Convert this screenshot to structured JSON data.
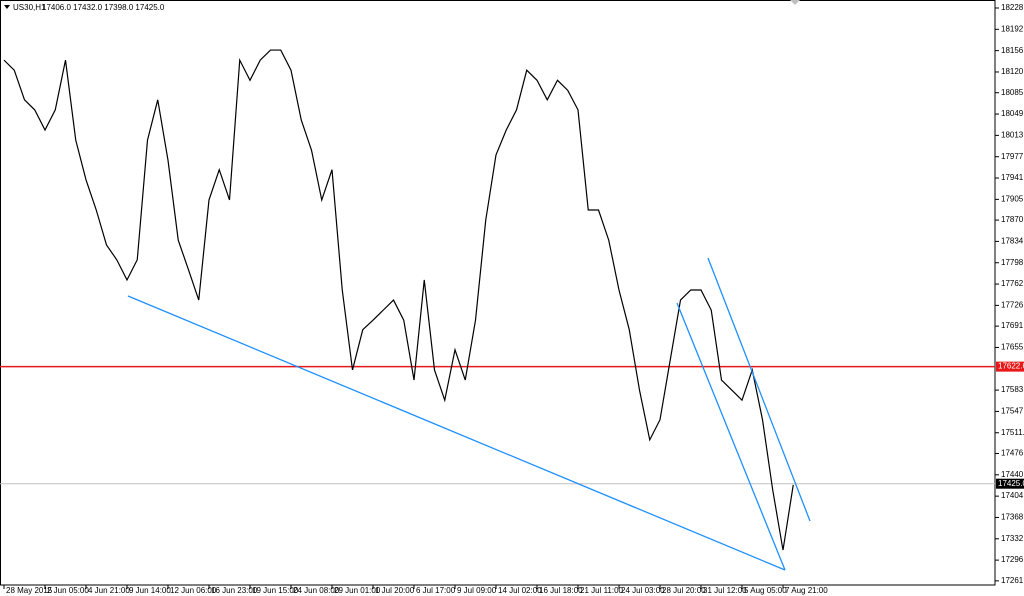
{
  "chart_data": {
    "type": "line",
    "title": "US30,H1",
    "subtitle": "17406.0 17432.0 17398.0 17425.0",
    "categories": [
      "28 May 2015",
      null,
      null,
      null,
      "2 Jun 05:00",
      null,
      null,
      null,
      "4 Jun 21:00",
      null,
      null,
      null,
      "9 Jun 14:00",
      null,
      null,
      null,
      "12 Jun 06:00",
      null,
      null,
      null,
      "16 Jun 23:00",
      null,
      null,
      null,
      "19 Jun 15:00",
      null,
      null,
      null,
      "24 Jun 08:00",
      null,
      null,
      null,
      "29 Jun 01:00",
      null,
      null,
      null,
      "1 Jul 20:00",
      null,
      null,
      null,
      "6 Jul 17:00",
      null,
      null,
      null,
      "9 Jul 09:00",
      null,
      null,
      null,
      "14 Jul 02:00",
      null,
      null,
      null,
      "16 Jul 18:00",
      null,
      null,
      null,
      "21 Jul 11:00",
      null,
      null,
      null,
      "24 Jul 03:00",
      null,
      null,
      null,
      "28 Jul 20:00",
      null,
      null,
      null,
      "31 Jul 12:00",
      null,
      null,
      null,
      "5 Aug 05:00",
      null,
      null,
      null,
      "7 Aug 21:00",
      null
    ],
    "values": [
      18140,
      18123,
      18073,
      18056,
      18022,
      18056,
      18140,
      18005,
      17938,
      17887,
      17828,
      17803,
      17769,
      17803,
      18005,
      18073,
      17971,
      17836,
      17786,
      17735,
      17904,
      17955,
      17904,
      18140,
      18106,
      18140,
      18157,
      18157,
      18123,
      18039,
      17988,
      17904,
      17955,
      17752,
      17617,
      17685,
      17701,
      17718,
      17735,
      17701,
      17600,
      17769,
      17617,
      17566,
      17651,
      17600,
      17701,
      17870,
      17980,
      18022,
      18056,
      18123,
      18106,
      18073,
      18106,
      18089,
      18056,
      17887,
      17887,
      17836,
      17752,
      17685,
      17583,
      17499,
      17533,
      17634,
      17735,
      17752,
      17752,
      17718,
      17600,
      17583,
      17566,
      17617,
      17533,
      17414,
      17313,
      17423
    ],
    "color": "#000000",
    "ylim": [
      17254,
      18241.5
    ],
    "yticks": [
      {
        "value": 18228,
        "label": "18228.0"
      },
      {
        "value": 18192,
        "label": "18192.0"
      },
      {
        "value": 18156,
        "label": "18156.0"
      },
      {
        "value": 18120,
        "label": "18120.0"
      },
      {
        "value": 18085,
        "label": "18085.0"
      },
      {
        "value": 18049,
        "label": "18049.0"
      },
      {
        "value": 18013,
        "label": "18013.0"
      },
      {
        "value": 17977,
        "label": "17977.0"
      },
      {
        "value": 17941,
        "label": "17941.0"
      },
      {
        "value": 17905,
        "label": "17905.0"
      },
      {
        "value": 17870,
        "label": "17870.0"
      },
      {
        "value": 17834,
        "label": "17834.0"
      },
      {
        "value": 17798,
        "label": "17798.0"
      },
      {
        "value": 17762,
        "label": "17762.0"
      },
      {
        "value": 17726,
        "label": "17726.0"
      },
      {
        "value": 17691,
        "label": "17691.0"
      },
      {
        "value": 17655,
        "label": "17655.0"
      },
      {
        "value": 17583,
        "label": "17583.0"
      },
      {
        "value": 17547,
        "label": "17547.0"
      },
      {
        "value": 17511,
        "label": "17511.0"
      },
      {
        "value": 17476,
        "label": "17476.0"
      },
      {
        "value": 17440,
        "label": "17440.0"
      },
      {
        "value": 17404,
        "label": "17404.0"
      },
      {
        "value": 17368,
        "label": "17368.0"
      },
      {
        "value": 17332,
        "label": "17332.0"
      },
      {
        "value": 17296,
        "label": "17296.0"
      },
      {
        "value": 17261,
        "label": "17261.0"
      }
    ],
    "level_line": {
      "value": 17622.6,
      "color": "#e81818"
    },
    "price_line": {
      "value": 17425,
      "label": "17425.0",
      "color": "#c0c0c0"
    }
  }
}
